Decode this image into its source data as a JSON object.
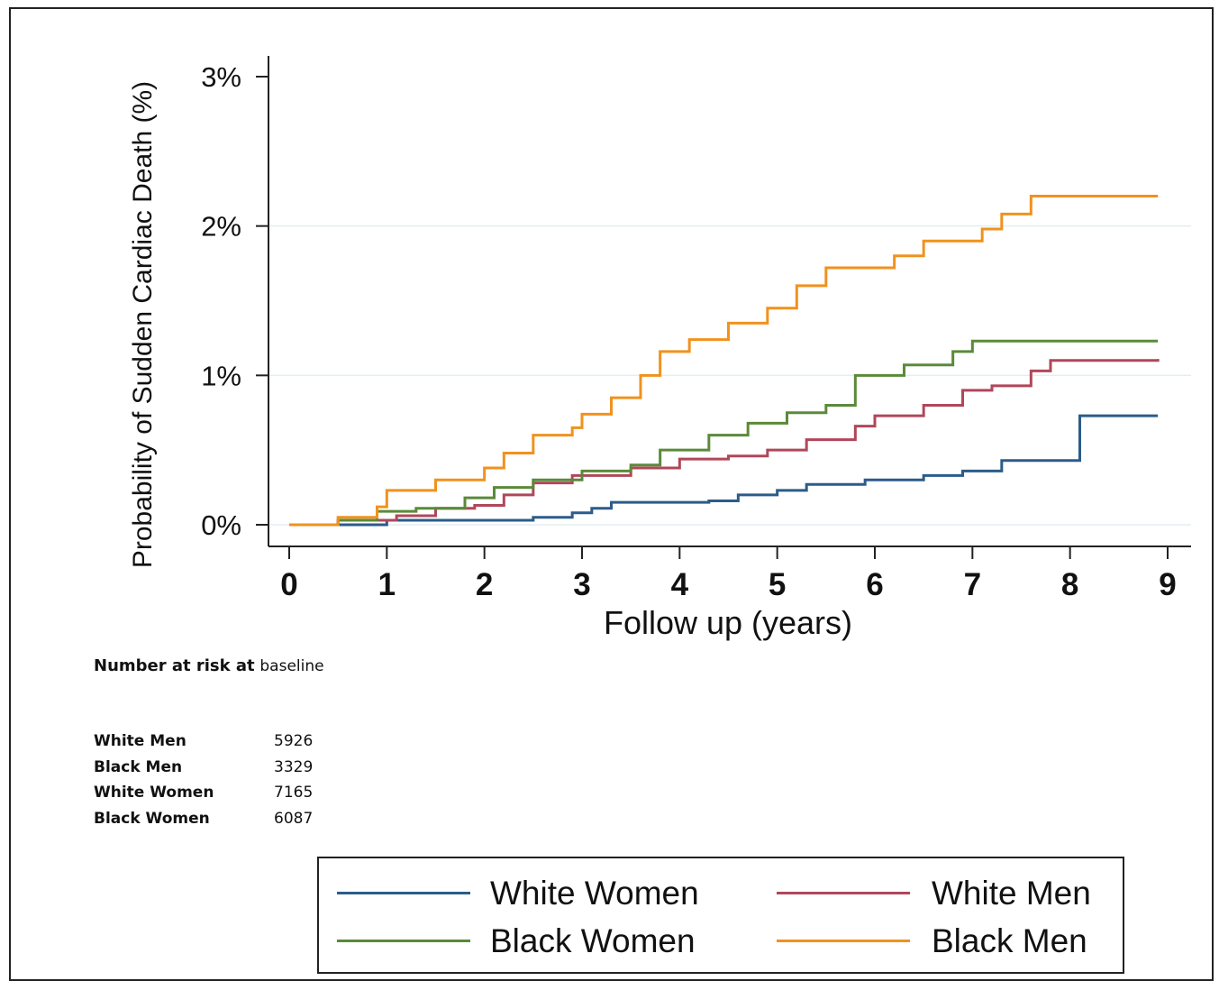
{
  "chart_data": {
    "type": "line",
    "xlabel": "Follow up (years)",
    "ylabel": "Probability of Sudden Cardiac Death (%)",
    "xlim": [
      0,
      9
    ],
    "ylim": [
      0,
      3
    ],
    "x_ticks": [
      "0",
      "1",
      "2",
      "3",
      "4",
      "5",
      "6",
      "7",
      "8",
      "9"
    ],
    "y_ticks": [
      "0%",
      "1%",
      "2%",
      "3%"
    ],
    "grid": "horizontal",
    "series": [
      {
        "name": "White Women",
        "color": "#2b5c8a",
        "points": [
          [
            0,
            0
          ],
          [
            0.9,
            0
          ],
          [
            1.0,
            0.03
          ],
          [
            2.0,
            0.03
          ],
          [
            2.5,
            0.05
          ],
          [
            2.9,
            0.08
          ],
          [
            3.1,
            0.11
          ],
          [
            3.3,
            0.15
          ],
          [
            4.3,
            0.16
          ],
          [
            4.6,
            0.2
          ],
          [
            5.0,
            0.23
          ],
          [
            5.3,
            0.27
          ],
          [
            5.9,
            0.3
          ],
          [
            6.5,
            0.33
          ],
          [
            6.9,
            0.36
          ],
          [
            7.3,
            0.43
          ],
          [
            8.1,
            0.43
          ],
          [
            8.1,
            0.73
          ],
          [
            8.9,
            0.73
          ]
        ]
      },
      {
        "name": "White Men",
        "color": "#b0475a",
        "points": [
          [
            0,
            0
          ],
          [
            0.5,
            0.03
          ],
          [
            1.1,
            0.06
          ],
          [
            1.5,
            0.11
          ],
          [
            1.9,
            0.13
          ],
          [
            2.2,
            0.2
          ],
          [
            2.5,
            0.28
          ],
          [
            2.9,
            0.33
          ],
          [
            3.5,
            0.38
          ],
          [
            4.0,
            0.44
          ],
          [
            4.5,
            0.46
          ],
          [
            4.9,
            0.5
          ],
          [
            5.3,
            0.57
          ],
          [
            5.8,
            0.66
          ],
          [
            6.0,
            0.73
          ],
          [
            6.5,
            0.8
          ],
          [
            6.9,
            0.9
          ],
          [
            7.2,
            0.93
          ],
          [
            7.6,
            1.03
          ],
          [
            7.8,
            1.1
          ],
          [
            8.9,
            1.11
          ]
        ]
      },
      {
        "name": "Black Women",
        "color": "#5a8a3a",
        "points": [
          [
            0,
            0
          ],
          [
            0.5,
            0.03
          ],
          [
            0.9,
            0.09
          ],
          [
            1.3,
            0.11
          ],
          [
            1.8,
            0.18
          ],
          [
            2.1,
            0.25
          ],
          [
            2.5,
            0.3
          ],
          [
            3.0,
            0.36
          ],
          [
            3.5,
            0.4
          ],
          [
            3.8,
            0.5
          ],
          [
            4.3,
            0.6
          ],
          [
            4.7,
            0.68
          ],
          [
            5.1,
            0.75
          ],
          [
            5.5,
            0.8
          ],
          [
            5.8,
            1.0
          ],
          [
            6.3,
            1.07
          ],
          [
            6.8,
            1.16
          ],
          [
            7.0,
            1.23
          ],
          [
            8.9,
            1.23
          ]
        ]
      },
      {
        "name": "Black Men",
        "color": "#f0921e",
        "points": [
          [
            0,
            0
          ],
          [
            0.5,
            0.05
          ],
          [
            0.9,
            0.12
          ],
          [
            1.0,
            0.23
          ],
          [
            1.5,
            0.3
          ],
          [
            2.0,
            0.38
          ],
          [
            2.2,
            0.48
          ],
          [
            2.5,
            0.6
          ],
          [
            2.9,
            0.65
          ],
          [
            3.0,
            0.74
          ],
          [
            3.3,
            0.85
          ],
          [
            3.6,
            1.0
          ],
          [
            3.8,
            1.16
          ],
          [
            4.1,
            1.24
          ],
          [
            4.5,
            1.35
          ],
          [
            4.9,
            1.45
          ],
          [
            5.2,
            1.6
          ],
          [
            5.5,
            1.72
          ],
          [
            6.2,
            1.8
          ],
          [
            6.5,
            1.9
          ],
          [
            7.1,
            1.98
          ],
          [
            7.3,
            2.08
          ],
          [
            7.6,
            2.2
          ],
          [
            8.9,
            2.2
          ]
        ]
      }
    ]
  },
  "risk_table": {
    "heading": "Number at risk at",
    "heading_sub": "baseline",
    "rows": [
      {
        "group": "White Men",
        "count": "5926"
      },
      {
        "group": "Black Men",
        "count": "3329"
      },
      {
        "group": "White Women",
        "count": "7165"
      },
      {
        "group": "Black Women",
        "count": "6087"
      }
    ]
  },
  "legend": {
    "items": [
      {
        "name": "White Women",
        "color": "#2b5c8a"
      },
      {
        "name": "White Men",
        "color": "#b0475a"
      },
      {
        "name": "Black Women",
        "color": "#5a8a3a"
      },
      {
        "name": "Black Men",
        "color": "#f0921e"
      }
    ]
  }
}
